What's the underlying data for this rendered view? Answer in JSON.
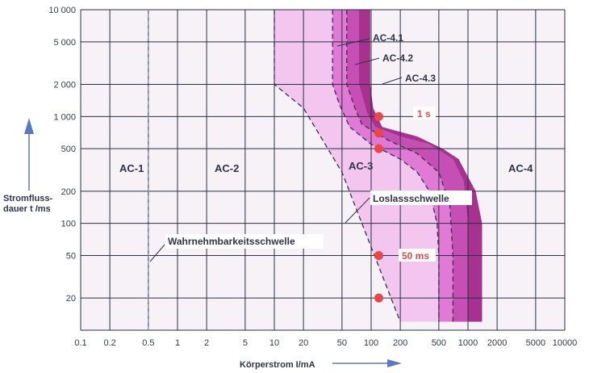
{
  "chart_data": {
    "type": "area",
    "x_scale": "log",
    "y_scale": "log",
    "xlabel": "Körperstrom I/mA",
    "ylabel_lines": [
      "Stromfluss-",
      "dauer t /ms"
    ],
    "xlim": [
      0.1,
      10000
    ],
    "ylim": [
      10,
      10000
    ],
    "grid": true,
    "x_ticks": [
      "0.1",
      "0.2",
      "0.5",
      "1",
      "2",
      "5",
      "10",
      "20",
      "50",
      "100",
      "200",
      "500",
      "1000",
      "2000",
      "5000",
      "10000"
    ],
    "x_tick_values": [
      0.1,
      0.2,
      0.5,
      1,
      2,
      5,
      10,
      20,
      50,
      100,
      200,
      500,
      1000,
      2000,
      5000,
      10000
    ],
    "y_ticks": [
      "20",
      "50",
      "100",
      "200",
      "500",
      "1 000",
      "2 000",
      "5 000",
      "10 000"
    ],
    "y_tick_values": [
      20,
      50,
      100,
      200,
      500,
      1000,
      2000,
      5000,
      10000
    ],
    "regions": [
      {
        "label": "AC-1",
        "x": 0.25,
        "y": 300
      },
      {
        "label": "AC-2",
        "x": 3,
        "y": 300
      },
      {
        "label": "AC-3",
        "x": 70,
        "y": 300
      },
      {
        "label": "AC-4",
        "x": 4000,
        "y": 300
      }
    ],
    "curves": {
      "a_wahrnehmbarkeit": [
        [
          0.5,
          10
        ],
        [
          0.5,
          10000
        ]
      ],
      "b_loslass": [
        [
          10,
          10000
        ],
        [
          10,
          2000
        ],
        [
          20,
          1200
        ],
        [
          50,
          300
        ],
        [
          100,
          60
        ],
        [
          200,
          12
        ]
      ],
      "c1": [
        [
          40,
          10000
        ],
        [
          40,
          2000
        ],
        [
          47,
          1300
        ],
        [
          60,
          800
        ],
        [
          100,
          550
        ],
        [
          200,
          400
        ],
        [
          300,
          300
        ],
        [
          400,
          200
        ],
        [
          480,
          100
        ],
        [
          500,
          50
        ],
        [
          500,
          12
        ]
      ],
      "c2": [
        [
          56,
          10000
        ],
        [
          56,
          2000
        ],
        [
          68,
          1200
        ],
        [
          80,
          850
        ],
        [
          150,
          600
        ],
        [
          300,
          450
        ],
        [
          500,
          300
        ],
        [
          650,
          150
        ],
        [
          700,
          50
        ],
        [
          700,
          12
        ]
      ],
      "c3": [
        [
          75,
          10000
        ],
        [
          75,
          2000
        ],
        [
          90,
          1100
        ],
        [
          110,
          800
        ],
        [
          200,
          650
        ],
        [
          400,
          550
        ],
        [
          700,
          400
        ],
        [
          900,
          250
        ],
        [
          1000,
          100
        ],
        [
          1000,
          50
        ],
        [
          1000,
          12
        ]
      ],
      "c4": [
        [
          98,
          10000
        ],
        [
          98,
          2000
        ],
        [
          105,
          1200
        ],
        [
          130,
          800
        ],
        [
          300,
          650
        ],
        [
          550,
          500
        ],
        [
          800,
          400
        ],
        [
          1200,
          200
        ],
        [
          1400,
          100
        ],
        [
          1400,
          12
        ]
      ]
    },
    "annotations": [
      {
        "text": "AC-4.1"
      },
      {
        "text": "AC-4.2"
      },
      {
        "text": "AC-4.3"
      },
      {
        "text": "Loslassschwelle"
      },
      {
        "text": "Wahrnehmbarkeitsschwelle"
      },
      {
        "text": "1 s"
      },
      {
        "text": "50 ms"
      }
    ],
    "points": [
      {
        "x": 120,
        "y": 1000
      },
      {
        "x": 120,
        "y": 700
      },
      {
        "x": 120,
        "y": 500
      },
      {
        "x": 120,
        "y": 50
      },
      {
        "x": 120,
        "y": 20
      }
    ],
    "colors": {
      "grid": "#2b3042",
      "background": "#f7f1f8",
      "ac3_fill": "#f2c6ef",
      "ac41_fill": "#e07ad6",
      "ac42_fill": "#c64fb6",
      "ac43_fill": "#a6318f",
      "dash": "#2e3446",
      "point": "#ec4646",
      "arrow": "#5a78c5"
    }
  }
}
